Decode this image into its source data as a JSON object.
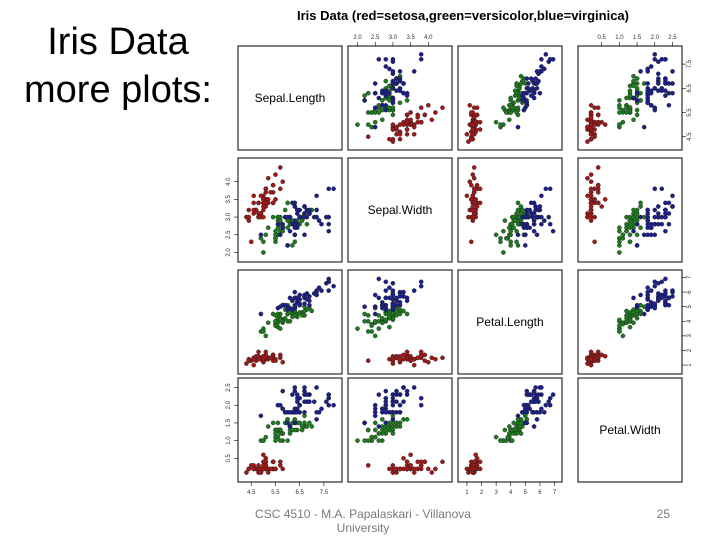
{
  "slide": {
    "title_lines": [
      "Iris Data",
      "more plots:"
    ],
    "footer": "CSC 4510 - M.A. Papalaskari - Villanova University",
    "page_number": "25"
  },
  "chart_data": {
    "type": "scatter",
    "subtype": "scatterplot-matrix",
    "title": "Iris Data (red=setosa,green=versicolor,blue=virginica)",
    "variables": [
      {
        "name": "Sepal.Length",
        "range": [
          4.2,
          8.0
        ],
        "ticks": [
          "4.5",
          "5.5",
          "6.5",
          "7.5"
        ]
      },
      {
        "name": "Sepal.Width",
        "range": [
          1.9,
          4.5
        ],
        "ticks": [
          "2.0",
          "2.5",
          "3.0",
          "3.5",
          "4.0"
        ]
      },
      {
        "name": "Petal.Length",
        "range": [
          0.8,
          7.1
        ],
        "ticks": [
          "1",
          "2",
          "3",
          "4",
          "5",
          "6",
          "7"
        ]
      },
      {
        "name": "Petal.Width",
        "range": [
          0.0,
          2.6
        ],
        "ticks": [
          "0.5",
          "1.0",
          "1.5",
          "2.0",
          "2.5"
        ]
      }
    ],
    "colors": {
      "setosa": "#a01818",
      "versicolor": "#1e7b1e",
      "virginica": "#1a1f8a"
    },
    "legend": "title text",
    "species": [
      {
        "name": "setosa",
        "color": "#a01818",
        "points": [
          [
            5.1,
            3.5,
            1.4,
            0.2
          ],
          [
            4.9,
            3.0,
            1.4,
            0.2
          ],
          [
            4.7,
            3.2,
            1.3,
            0.2
          ],
          [
            4.6,
            3.1,
            1.5,
            0.2
          ],
          [
            5.0,
            3.6,
            1.4,
            0.2
          ],
          [
            5.4,
            3.9,
            1.7,
            0.4
          ],
          [
            4.6,
            3.4,
            1.4,
            0.3
          ],
          [
            5.0,
            3.4,
            1.5,
            0.2
          ],
          [
            4.4,
            2.9,
            1.4,
            0.2
          ],
          [
            4.9,
            3.1,
            1.5,
            0.1
          ],
          [
            5.4,
            3.7,
            1.5,
            0.2
          ],
          [
            4.8,
            3.4,
            1.6,
            0.2
          ],
          [
            4.8,
            3.0,
            1.4,
            0.1
          ],
          [
            4.3,
            3.0,
            1.1,
            0.1
          ],
          [
            5.8,
            4.0,
            1.2,
            0.2
          ],
          [
            5.7,
            4.4,
            1.5,
            0.4
          ],
          [
            5.4,
            3.9,
            1.3,
            0.4
          ],
          [
            5.1,
            3.5,
            1.4,
            0.3
          ],
          [
            5.7,
            3.8,
            1.7,
            0.3
          ],
          [
            5.1,
            3.8,
            1.5,
            0.3
          ],
          [
            5.4,
            3.4,
            1.7,
            0.2
          ],
          [
            5.1,
            3.7,
            1.5,
            0.4
          ],
          [
            4.6,
            3.6,
            1.0,
            0.2
          ],
          [
            5.1,
            3.3,
            1.7,
            0.5
          ],
          [
            4.8,
            3.4,
            1.9,
            0.2
          ],
          [
            5.0,
            3.0,
            1.6,
            0.2
          ],
          [
            5.0,
            3.4,
            1.6,
            0.4
          ],
          [
            5.2,
            3.5,
            1.5,
            0.2
          ],
          [
            5.2,
            3.4,
            1.4,
            0.2
          ],
          [
            4.7,
            3.2,
            1.6,
            0.2
          ],
          [
            4.8,
            3.1,
            1.6,
            0.2
          ],
          [
            5.4,
            3.4,
            1.5,
            0.4
          ],
          [
            5.2,
            4.1,
            1.5,
            0.1
          ],
          [
            5.5,
            4.2,
            1.4,
            0.2
          ],
          [
            4.9,
            3.1,
            1.5,
            0.2
          ],
          [
            5.0,
            3.2,
            1.2,
            0.2
          ],
          [
            5.5,
            3.5,
            1.3,
            0.2
          ],
          [
            4.9,
            3.6,
            1.4,
            0.1
          ],
          [
            4.4,
            3.0,
            1.3,
            0.2
          ],
          [
            5.1,
            3.4,
            1.5,
            0.2
          ],
          [
            5.0,
            3.5,
            1.3,
            0.3
          ],
          [
            4.5,
            2.3,
            1.3,
            0.3
          ],
          [
            4.4,
            3.2,
            1.3,
            0.2
          ],
          [
            5.0,
            3.5,
            1.6,
            0.6
          ],
          [
            5.1,
            3.8,
            1.9,
            0.4
          ],
          [
            4.8,
            3.0,
            1.4,
            0.3
          ],
          [
            5.1,
            3.8,
            1.6,
            0.2
          ],
          [
            4.6,
            3.2,
            1.4,
            0.2
          ],
          [
            5.3,
            3.7,
            1.5,
            0.2
          ],
          [
            5.0,
            3.3,
            1.4,
            0.2
          ]
        ]
      },
      {
        "name": "versicolor",
        "color": "#1e7b1e",
        "points": [
          [
            7.0,
            3.2,
            4.7,
            1.4
          ],
          [
            6.4,
            3.2,
            4.5,
            1.5
          ],
          [
            6.9,
            3.1,
            4.9,
            1.5
          ],
          [
            5.5,
            2.3,
            4.0,
            1.3
          ],
          [
            6.5,
            2.8,
            4.6,
            1.5
          ],
          [
            5.7,
            2.8,
            4.5,
            1.3
          ],
          [
            6.3,
            3.3,
            4.7,
            1.6
          ],
          [
            4.9,
            2.4,
            3.3,
            1.0
          ],
          [
            6.6,
            2.9,
            4.6,
            1.3
          ],
          [
            5.2,
            2.7,
            3.9,
            1.4
          ],
          [
            5.0,
            2.0,
            3.5,
            1.0
          ],
          [
            5.9,
            3.0,
            4.2,
            1.5
          ],
          [
            6.0,
            2.2,
            4.0,
            1.0
          ],
          [
            6.1,
            2.9,
            4.7,
            1.4
          ],
          [
            5.6,
            2.9,
            3.6,
            1.3
          ],
          [
            6.7,
            3.1,
            4.4,
            1.4
          ],
          [
            5.6,
            3.0,
            4.5,
            1.5
          ],
          [
            5.8,
            2.7,
            4.1,
            1.0
          ],
          [
            6.2,
            2.2,
            4.5,
            1.5
          ],
          [
            5.6,
            2.5,
            3.9,
            1.1
          ],
          [
            5.9,
            3.2,
            4.8,
            1.8
          ],
          [
            6.1,
            2.8,
            4.0,
            1.3
          ],
          [
            6.3,
            2.5,
            4.9,
            1.5
          ],
          [
            6.1,
            2.8,
            4.7,
            1.2
          ],
          [
            6.4,
            2.9,
            4.3,
            1.3
          ],
          [
            6.6,
            3.0,
            4.4,
            1.4
          ],
          [
            6.8,
            2.8,
            4.8,
            1.4
          ],
          [
            6.7,
            3.0,
            5.0,
            1.7
          ],
          [
            6.0,
            2.9,
            4.5,
            1.5
          ],
          [
            5.7,
            2.6,
            3.5,
            1.0
          ],
          [
            5.5,
            2.4,
            3.8,
            1.1
          ],
          [
            5.5,
            2.4,
            3.7,
            1.0
          ],
          [
            5.8,
            2.7,
            3.9,
            1.2
          ],
          [
            6.0,
            2.7,
            5.1,
            1.6
          ],
          [
            5.4,
            3.0,
            4.5,
            1.5
          ],
          [
            6.0,
            3.4,
            4.5,
            1.6
          ],
          [
            6.7,
            3.1,
            4.7,
            1.5
          ],
          [
            6.3,
            2.3,
            4.4,
            1.3
          ],
          [
            5.6,
            3.0,
            4.1,
            1.3
          ],
          [
            5.5,
            2.5,
            4.0,
            1.3
          ],
          [
            5.5,
            2.6,
            4.4,
            1.2
          ],
          [
            6.1,
            3.0,
            4.6,
            1.4
          ],
          [
            5.8,
            2.6,
            4.0,
            1.2
          ],
          [
            5.0,
            2.3,
            3.3,
            1.0
          ],
          [
            5.6,
            2.7,
            4.2,
            1.3
          ],
          [
            5.7,
            3.0,
            4.2,
            1.2
          ],
          [
            5.7,
            2.9,
            4.2,
            1.3
          ],
          [
            6.2,
            2.9,
            4.3,
            1.3
          ],
          [
            5.1,
            2.5,
            3.0,
            1.1
          ],
          [
            5.7,
            2.8,
            4.1,
            1.3
          ]
        ]
      },
      {
        "name": "virginica",
        "color": "#1a1f8a",
        "points": [
          [
            6.3,
            3.3,
            6.0,
            2.5
          ],
          [
            5.8,
            2.7,
            5.1,
            1.9
          ],
          [
            7.1,
            3.0,
            5.9,
            2.1
          ],
          [
            6.3,
            2.9,
            5.6,
            1.8
          ],
          [
            6.5,
            3.0,
            5.8,
            2.2
          ],
          [
            7.6,
            3.0,
            6.6,
            2.1
          ],
          [
            4.9,
            2.5,
            4.5,
            1.7
          ],
          [
            7.3,
            2.9,
            6.3,
            1.8
          ],
          [
            6.7,
            2.5,
            5.8,
            1.8
          ],
          [
            7.2,
            3.6,
            6.1,
            2.5
          ],
          [
            6.5,
            3.2,
            5.1,
            2.0
          ],
          [
            6.4,
            2.7,
            5.3,
            1.9
          ],
          [
            6.8,
            3.0,
            5.5,
            2.1
          ],
          [
            5.7,
            2.5,
            5.0,
            2.0
          ],
          [
            5.8,
            2.8,
            5.1,
            2.4
          ],
          [
            6.4,
            3.2,
            5.3,
            2.3
          ],
          [
            6.5,
            3.0,
            5.5,
            1.8
          ],
          [
            7.7,
            3.8,
            6.7,
            2.2
          ],
          [
            7.7,
            2.6,
            6.9,
            2.3
          ],
          [
            6.0,
            2.2,
            5.0,
            1.5
          ],
          [
            6.9,
            3.2,
            5.7,
            2.3
          ],
          [
            5.6,
            2.8,
            4.9,
            2.0
          ],
          [
            7.7,
            2.8,
            6.7,
            2.0
          ],
          [
            6.3,
            2.7,
            4.9,
            1.8
          ],
          [
            6.7,
            3.3,
            5.7,
            2.1
          ],
          [
            7.2,
            3.2,
            6.0,
            1.8
          ],
          [
            6.2,
            2.8,
            4.8,
            1.8
          ],
          [
            6.1,
            3.0,
            4.9,
            1.8
          ],
          [
            6.4,
            2.8,
            5.6,
            2.1
          ],
          [
            7.2,
            3.0,
            5.8,
            1.6
          ],
          [
            7.4,
            2.8,
            6.1,
            1.9
          ],
          [
            7.9,
            3.8,
            6.4,
            2.0
          ],
          [
            6.4,
            2.8,
            5.6,
            2.2
          ],
          [
            6.3,
            2.8,
            5.1,
            1.5
          ],
          [
            6.1,
            2.6,
            5.6,
            1.4
          ],
          [
            7.7,
            3.0,
            6.1,
            2.3
          ],
          [
            6.3,
            3.4,
            5.6,
            2.4
          ],
          [
            6.4,
            3.1,
            5.5,
            1.8
          ],
          [
            6.0,
            3.0,
            4.8,
            1.8
          ],
          [
            6.9,
            3.1,
            5.4,
            2.1
          ],
          [
            6.7,
            3.1,
            5.6,
            2.4
          ],
          [
            6.9,
            3.1,
            5.1,
            2.3
          ],
          [
            5.8,
            2.7,
            5.1,
            1.9
          ],
          [
            6.8,
            3.2,
            5.9,
            2.3
          ],
          [
            6.7,
            3.3,
            5.7,
            2.5
          ],
          [
            6.7,
            3.0,
            5.2,
            2.3
          ],
          [
            6.3,
            2.5,
            5.0,
            1.9
          ],
          [
            6.5,
            3.0,
            5.2,
            2.0
          ],
          [
            6.2,
            3.4,
            5.4,
            2.3
          ],
          [
            5.9,
            3.0,
            5.1,
            1.8
          ]
        ]
      }
    ]
  }
}
